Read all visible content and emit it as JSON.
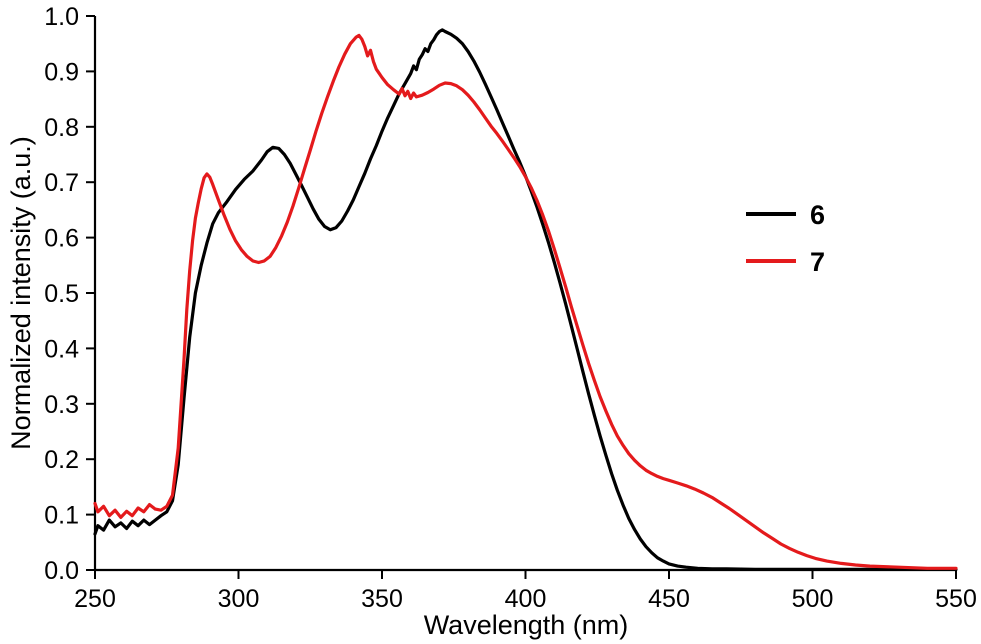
{
  "chart_data": {
    "type": "line",
    "title": "",
    "xlabel": "Wavelength (nm)",
    "ylabel": "Normalized intensity (a.u.)",
    "xlim": [
      250,
      550
    ],
    "ylim": [
      0,
      1.0
    ],
    "xticks": [
      250,
      300,
      350,
      400,
      450,
      500,
      550
    ],
    "yticks": [
      0.0,
      0.1,
      0.2,
      0.3,
      0.4,
      0.5,
      0.6,
      0.7,
      0.8,
      0.9,
      1.0
    ],
    "ytick_labels": [
      "0.0",
      "0.1",
      "0.2",
      "0.3",
      "0.4",
      "0.5",
      "0.6",
      "0.7",
      "0.8",
      "0.9",
      "1.0"
    ],
    "grid": false,
    "legend_position": "right",
    "axis_color": "#000000",
    "series": [
      {
        "name": "6",
        "color": "#000000",
        "points": [
          [
            250,
            0.065
          ],
          [
            251,
            0.08
          ],
          [
            253,
            0.072
          ],
          [
            255,
            0.09
          ],
          [
            257,
            0.078
          ],
          [
            259,
            0.085
          ],
          [
            261,
            0.075
          ],
          [
            263,
            0.088
          ],
          [
            265,
            0.08
          ],
          [
            267,
            0.09
          ],
          [
            269,
            0.082
          ],
          [
            271,
            0.09
          ],
          [
            273,
            0.098
          ],
          [
            275,
            0.105
          ],
          [
            277,
            0.125
          ],
          [
            279,
            0.19
          ],
          [
            281,
            0.31
          ],
          [
            283,
            0.42
          ],
          [
            285,
            0.5
          ],
          [
            287,
            0.55
          ],
          [
            289,
            0.59
          ],
          [
            291,
            0.625
          ],
          [
            293,
            0.645
          ],
          [
            296,
            0.665
          ],
          [
            299,
            0.687
          ],
          [
            302,
            0.705
          ],
          [
            305,
            0.72
          ],
          [
            308,
            0.74
          ],
          [
            310,
            0.755
          ],
          [
            312,
            0.763
          ],
          [
            314,
            0.761
          ],
          [
            316,
            0.75
          ],
          [
            318,
            0.734
          ],
          [
            320,
            0.714
          ],
          [
            322,
            0.694
          ],
          [
            324,
            0.673
          ],
          [
            326,
            0.652
          ],
          [
            328,
            0.633
          ],
          [
            330,
            0.62
          ],
          [
            332,
            0.614
          ],
          [
            334,
            0.618
          ],
          [
            336,
            0.63
          ],
          [
            338,
            0.648
          ],
          [
            340,
            0.668
          ],
          [
            342,
            0.692
          ],
          [
            344,
            0.716
          ],
          [
            346,
            0.742
          ],
          [
            348,
            0.766
          ],
          [
            350,
            0.792
          ],
          [
            352,
            0.816
          ],
          [
            354,
            0.838
          ],
          [
            356,
            0.86
          ],
          [
            358,
            0.878
          ],
          [
            360,
            0.896
          ],
          [
            361,
            0.91
          ],
          [
            362,
            0.903
          ],
          [
            363,
            0.922
          ],
          [
            364,
            0.93
          ],
          [
            365,
            0.941
          ],
          [
            366,
            0.936
          ],
          [
            367,
            0.95
          ],
          [
            368,
            0.957
          ],
          [
            369,
            0.966
          ],
          [
            370,
            0.972
          ],
          [
            371,
            0.975
          ],
          [
            372,
            0.972
          ],
          [
            374,
            0.967
          ],
          [
            376,
            0.96
          ],
          [
            378,
            0.95
          ],
          [
            380,
            0.936
          ],
          [
            382,
            0.919
          ],
          [
            384,
            0.899
          ],
          [
            386,
            0.877
          ],
          [
            388,
            0.854
          ],
          [
            390,
            0.831
          ],
          [
            392,
            0.807
          ],
          [
            394,
            0.783
          ],
          [
            396,
            0.759
          ],
          [
            398,
            0.736
          ],
          [
            400,
            0.711
          ],
          [
            402,
            0.684
          ],
          [
            404,
            0.655
          ],
          [
            406,
            0.624
          ],
          [
            408,
            0.591
          ],
          [
            410,
            0.556
          ],
          [
            412,
            0.519
          ],
          [
            414,
            0.48
          ],
          [
            416,
            0.44
          ],
          [
            418,
            0.399
          ],
          [
            420,
            0.358
          ],
          [
            422,
            0.318
          ],
          [
            424,
            0.279
          ],
          [
            426,
            0.242
          ],
          [
            428,
            0.207
          ],
          [
            430,
            0.174
          ],
          [
            432,
            0.144
          ],
          [
            434,
            0.117
          ],
          [
            436,
            0.093
          ],
          [
            438,
            0.073
          ],
          [
            440,
            0.056
          ],
          [
            442,
            0.042
          ],
          [
            444,
            0.031
          ],
          [
            446,
            0.022
          ],
          [
            448,
            0.016
          ],
          [
            450,
            0.011
          ],
          [
            453,
            0.007
          ],
          [
            456,
            0.005
          ],
          [
            460,
            0.003
          ],
          [
            465,
            0.002
          ],
          [
            470,
            0.002
          ],
          [
            480,
            0.001
          ],
          [
            490,
            0.001
          ],
          [
            500,
            0.001
          ],
          [
            510,
            0.001
          ],
          [
            525,
            0.001
          ],
          [
            550,
            0.001
          ]
        ]
      },
      {
        "name": "7",
        "color": "#e41a1c",
        "points": [
          [
            250,
            0.12
          ],
          [
            251,
            0.105
          ],
          [
            253,
            0.115
          ],
          [
            255,
            0.098
          ],
          [
            257,
            0.108
          ],
          [
            259,
            0.095
          ],
          [
            261,
            0.106
          ],
          [
            263,
            0.098
          ],
          [
            265,
            0.112
          ],
          [
            267,
            0.105
          ],
          [
            269,
            0.118
          ],
          [
            271,
            0.11
          ],
          [
            273,
            0.108
          ],
          [
            275,
            0.115
          ],
          [
            277,
            0.135
          ],
          [
            279,
            0.22
          ],
          [
            281,
            0.38
          ],
          [
            282,
            0.47
          ],
          [
            283,
            0.54
          ],
          [
            284,
            0.595
          ],
          [
            285,
            0.635
          ],
          [
            286,
            0.663
          ],
          [
            287,
            0.688
          ],
          [
            288,
            0.708
          ],
          [
            289,
            0.715
          ],
          [
            290,
            0.709
          ],
          [
            291,
            0.696
          ],
          [
            293,
            0.668
          ],
          [
            295,
            0.64
          ],
          [
            297,
            0.615
          ],
          [
            299,
            0.594
          ],
          [
            301,
            0.578
          ],
          [
            303,
            0.566
          ],
          [
            305,
            0.558
          ],
          [
            307,
            0.555
          ],
          [
            309,
            0.558
          ],
          [
            311,
            0.566
          ],
          [
            313,
            0.582
          ],
          [
            315,
            0.603
          ],
          [
            317,
            0.628
          ],
          [
            319,
            0.657
          ],
          [
            321,
            0.69
          ],
          [
            323,
            0.724
          ],
          [
            325,
            0.758
          ],
          [
            327,
            0.792
          ],
          [
            329,
            0.824
          ],
          [
            331,
            0.854
          ],
          [
            333,
            0.882
          ],
          [
            335,
            0.908
          ],
          [
            337,
            0.931
          ],
          [
            339,
            0.95
          ],
          [
            341,
            0.962
          ],
          [
            342,
            0.965
          ],
          [
            343,
            0.958
          ],
          [
            344,
            0.945
          ],
          [
            345,
            0.928
          ],
          [
            346,
            0.938
          ],
          [
            347,
            0.918
          ],
          [
            348,
            0.904
          ],
          [
            350,
            0.889
          ],
          [
            352,
            0.876
          ],
          [
            354,
            0.867
          ],
          [
            356,
            0.859
          ],
          [
            357,
            0.869
          ],
          [
            358,
            0.856
          ],
          [
            359,
            0.864
          ],
          [
            360,
            0.851
          ],
          [
            361,
            0.861
          ],
          [
            362,
            0.854
          ],
          [
            364,
            0.857
          ],
          [
            366,
            0.862
          ],
          [
            368,
            0.868
          ],
          [
            370,
            0.875
          ],
          [
            372,
            0.879
          ],
          [
            374,
            0.878
          ],
          [
            376,
            0.874
          ],
          [
            378,
            0.867
          ],
          [
            380,
            0.857
          ],
          [
            382,
            0.845
          ],
          [
            384,
            0.831
          ],
          [
            386,
            0.816
          ],
          [
            388,
            0.801
          ],
          [
            390,
            0.788
          ],
          [
            392,
            0.774
          ],
          [
            394,
            0.759
          ],
          [
            396,
            0.744
          ],
          [
            398,
            0.728
          ],
          [
            400,
            0.71
          ],
          [
            402,
            0.69
          ],
          [
            404,
            0.667
          ],
          [
            406,
            0.641
          ],
          [
            408,
            0.612
          ],
          [
            410,
            0.58
          ],
          [
            412,
            0.546
          ],
          [
            414,
            0.511
          ],
          [
            416,
            0.475
          ],
          [
            418,
            0.44
          ],
          [
            420,
            0.406
          ],
          [
            422,
            0.373
          ],
          [
            424,
            0.342
          ],
          [
            426,
            0.313
          ],
          [
            428,
            0.287
          ],
          [
            430,
            0.263
          ],
          [
            432,
            0.242
          ],
          [
            434,
            0.225
          ],
          [
            436,
            0.21
          ],
          [
            438,
            0.198
          ],
          [
            440,
            0.188
          ],
          [
            442,
            0.18
          ],
          [
            444,
            0.174
          ],
          [
            446,
            0.169
          ],
          [
            448,
            0.165
          ],
          [
            450,
            0.162
          ],
          [
            453,
            0.157
          ],
          [
            456,
            0.152
          ],
          [
            459,
            0.146
          ],
          [
            462,
            0.139
          ],
          [
            465,
            0.131
          ],
          [
            468,
            0.121
          ],
          [
            471,
            0.111
          ],
          [
            474,
            0.1
          ],
          [
            477,
            0.089
          ],
          [
            480,
            0.078
          ],
          [
            483,
            0.067
          ],
          [
            486,
            0.057
          ],
          [
            489,
            0.047
          ],
          [
            492,
            0.039
          ],
          [
            495,
            0.032
          ],
          [
            498,
            0.026
          ],
          [
            501,
            0.021
          ],
          [
            505,
            0.016
          ],
          [
            510,
            0.012
          ],
          [
            515,
            0.009
          ],
          [
            520,
            0.007
          ],
          [
            530,
            0.005
          ],
          [
            540,
            0.003
          ],
          [
            550,
            0.003
          ]
        ]
      }
    ]
  }
}
